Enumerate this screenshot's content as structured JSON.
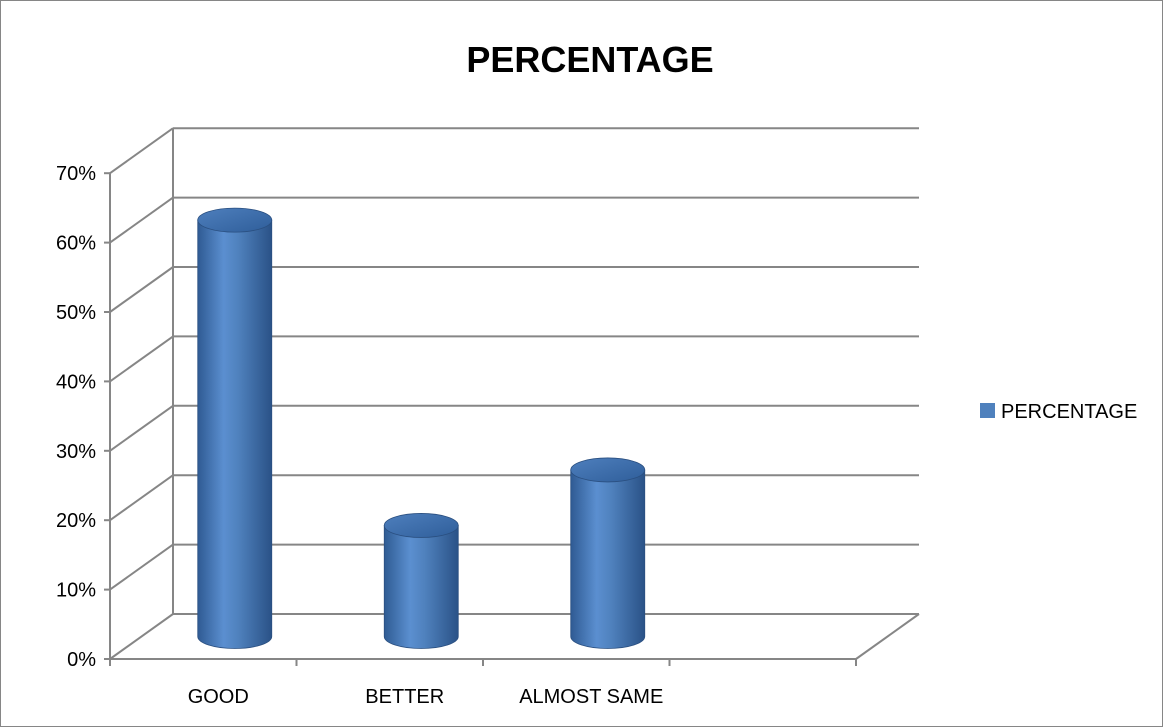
{
  "chart_data": {
    "type": "bar",
    "title": "PERCENTAGE",
    "categories": [
      "GOOD",
      "BETTER",
      "ALMOST SAME",
      ""
    ],
    "series": [
      {
        "name": "PERCENTAGE",
        "values": [
          60,
          16,
          24,
          null
        ],
        "color": "#4F81BD"
      }
    ],
    "y_ticks": [
      "0%",
      "10%",
      "20%",
      "30%",
      "40%",
      "50%",
      "60%",
      "70%"
    ],
    "ylim": [
      0,
      70
    ],
    "y_unit": "%",
    "legend_position": "right",
    "grid": true,
    "style": "3d-cylinder"
  }
}
